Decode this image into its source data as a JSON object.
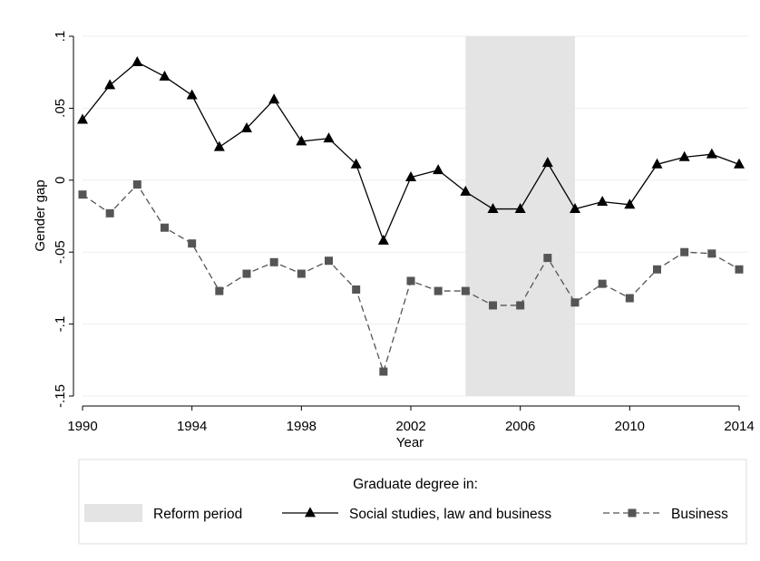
{
  "chart_data": {
    "type": "line",
    "xlabel": "Year",
    "ylabel": "Gender gap",
    "xlim": [
      1990,
      2014
    ],
    "ylim": [
      -0.15,
      0.1
    ],
    "x_ticks": [
      1990,
      1994,
      1998,
      2002,
      2006,
      2010,
      2014
    ],
    "x_tick_labels": [
      "1990",
      "1994",
      "1998",
      "2002",
      "2006",
      "2010",
      "2014"
    ],
    "y_ticks": [
      0.1,
      0.05,
      0,
      -0.05,
      -0.1,
      -0.15
    ],
    "y_tick_labels": [
      ".1",
      ".05",
      "0",
      "-.05",
      "-.1",
      "-.15"
    ],
    "grid": true,
    "shaded_region": {
      "name": "Reform period",
      "x_start": 2004,
      "x_end": 2008,
      "color": "#e4e4e4"
    },
    "legend": {
      "title": "Graduate degree in:",
      "placement": "bottom",
      "entries": [
        "Reform period",
        "Social studies, law and business",
        "Business"
      ]
    },
    "x": [
      1990,
      1991,
      1992,
      1993,
      1994,
      1995,
      1996,
      1997,
      1998,
      1999,
      2000,
      2001,
      2002,
      2003,
      2004,
      2005,
      2006,
      2007,
      2008,
      2009,
      2010,
      2011,
      2012,
      2013,
      2014
    ],
    "series": [
      {
        "name": "Social studies, law and business",
        "color": "#000000",
        "style": "solid",
        "marker": "triangle",
        "values": [
          0.042,
          0.066,
          0.082,
          0.072,
          0.059,
          0.023,
          0.036,
          0.056,
          0.027,
          0.029,
          0.011,
          -0.042,
          0.002,
          0.007,
          -0.008,
          -0.02,
          -0.02,
          0.012,
          -0.02,
          -0.015,
          -0.017,
          0.011,
          0.016,
          0.018,
          0.011
        ]
      },
      {
        "name": "Business",
        "color": "#555555",
        "style": "dashed",
        "marker": "square",
        "values": [
          -0.01,
          -0.023,
          -0.003,
          -0.033,
          -0.044,
          -0.077,
          -0.065,
          -0.057,
          -0.065,
          -0.056,
          -0.076,
          -0.133,
          -0.07,
          -0.077,
          -0.077,
          -0.087,
          -0.087,
          -0.054,
          -0.085,
          -0.072,
          -0.082,
          -0.062,
          -0.05,
          -0.051,
          -0.062
        ]
      }
    ]
  }
}
